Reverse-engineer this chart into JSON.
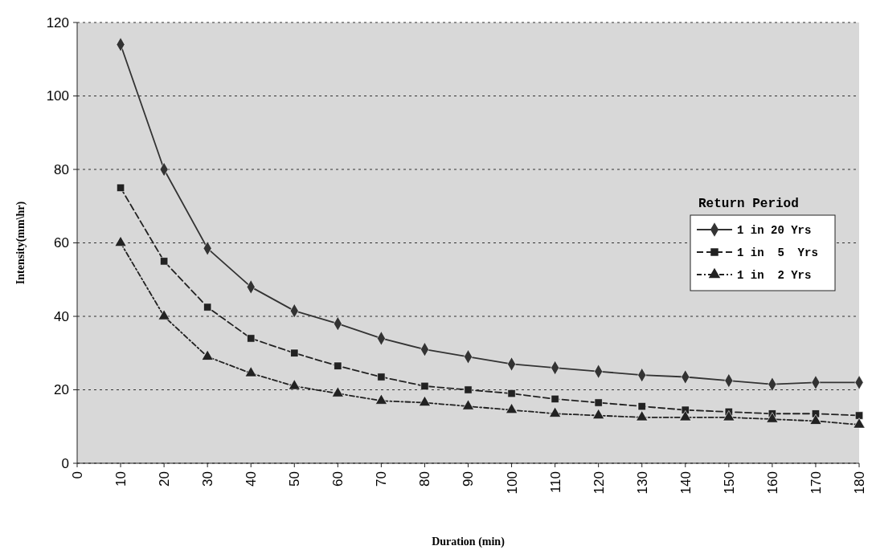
{
  "chart_data": {
    "type": "line",
    "xlabel": "Duration (min)",
    "ylabel": "Intensity(mm\\hr)",
    "legend_title": "Return Period",
    "legend": "right",
    "grid": "y",
    "x": [
      10,
      20,
      30,
      40,
      50,
      60,
      70,
      80,
      90,
      100,
      110,
      120,
      130,
      140,
      150,
      160,
      170,
      180
    ],
    "xlim": [
      0,
      180
    ],
    "xticks": [
      0,
      10,
      20,
      30,
      40,
      50,
      60,
      70,
      80,
      90,
      100,
      110,
      120,
      130,
      140,
      150,
      160,
      170,
      180
    ],
    "ylim": [
      0,
      120
    ],
    "yticks": [
      0,
      20,
      40,
      60,
      80,
      100,
      120
    ],
    "series": [
      {
        "name": "1 in 20 Yrs",
        "color": "#333333",
        "marker": "diamond",
        "line_style": "solid",
        "values": [
          114,
          80,
          58.5,
          48,
          41.5,
          38,
          34,
          31,
          29,
          27,
          26,
          25,
          24,
          23.5,
          22.5,
          21.5,
          22,
          22
        ]
      },
      {
        "name": "1 in  5  Yrs",
        "color": "#222222",
        "marker": "square",
        "line_style": "dashed",
        "values": [
          75,
          55,
          42.5,
          34,
          30,
          26.5,
          23.5,
          21,
          20,
          19,
          17.5,
          16.5,
          15.5,
          14.5,
          14,
          13.5,
          13.5,
          13
        ]
      },
      {
        "name": "1 in  2 Yrs",
        "color": "#222222",
        "marker": "triangle",
        "line_style": "dotted",
        "values": [
          60,
          40,
          29,
          24.5,
          21,
          19,
          17,
          16.5,
          15.5,
          14.5,
          13.5,
          13,
          12.5,
          12.5,
          12.5,
          12,
          11.5,
          10.5
        ]
      }
    ]
  }
}
